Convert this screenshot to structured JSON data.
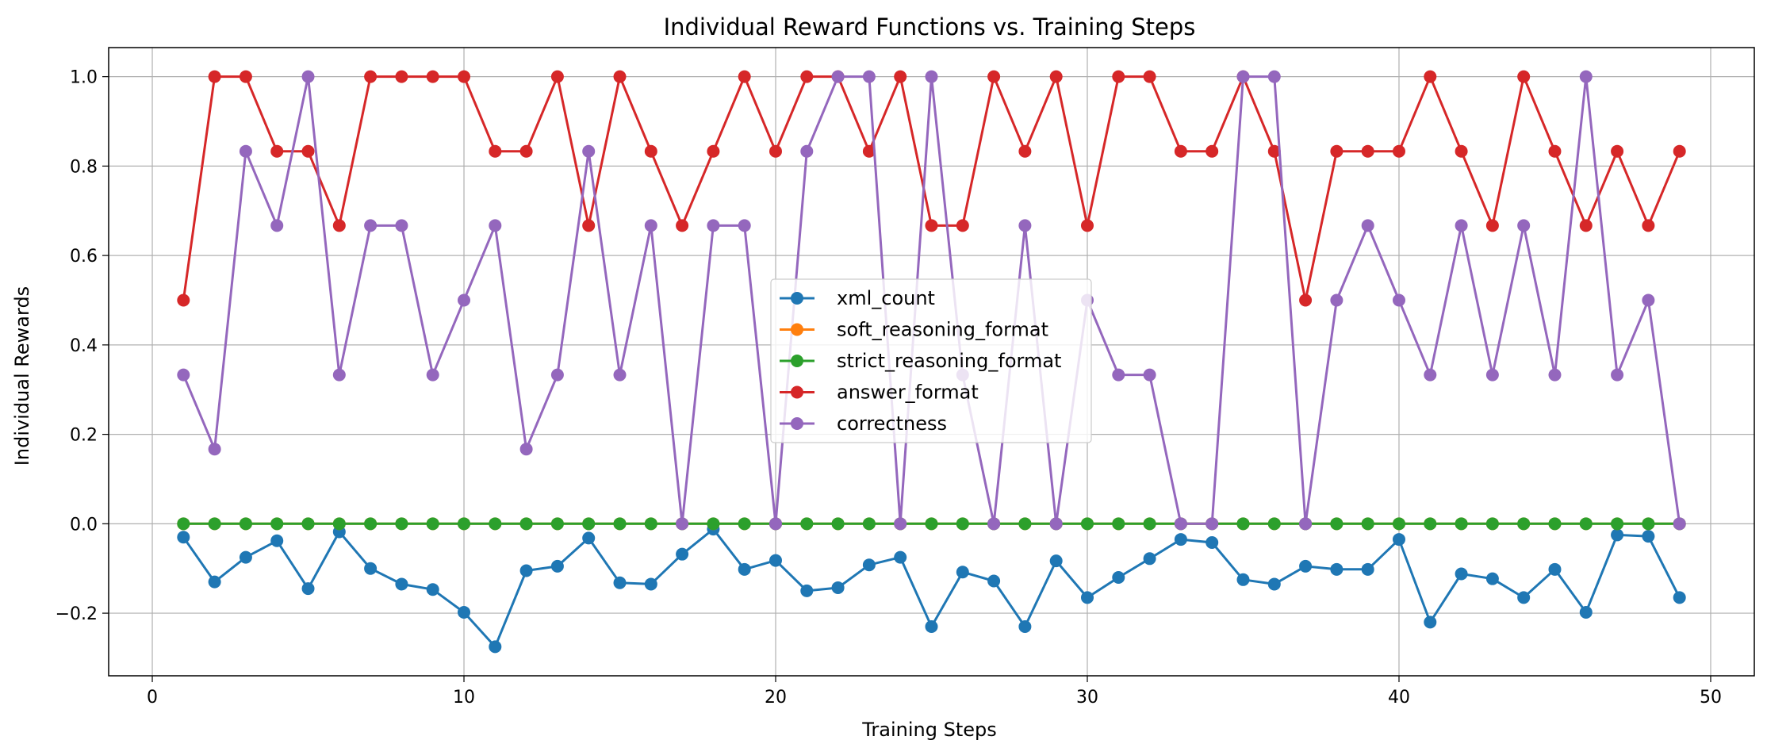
{
  "chart_data": {
    "type": "line",
    "title": "Individual Reward Functions vs. Training Steps",
    "xlabel": "Training Steps",
    "ylabel": "Individual Rewards",
    "xlim": [
      -1.4,
      51.4
    ],
    "ylim": [
      -0.34,
      1.065
    ],
    "xticks": [
      0,
      10,
      20,
      30,
      40,
      50
    ],
    "yticks": [
      -0.2,
      0.0,
      0.2,
      0.4,
      0.6,
      0.8,
      1.0
    ],
    "xtick_labels": [
      "0",
      "10",
      "20",
      "30",
      "40",
      "50"
    ],
    "ytick_labels": [
      "−0.2",
      "0.0",
      "0.2",
      "0.4",
      "0.6",
      "0.8",
      "1.0"
    ],
    "grid": true,
    "legend_position": "center",
    "x": [
      1,
      2,
      3,
      4,
      5,
      6,
      7,
      8,
      9,
      10,
      11,
      12,
      13,
      14,
      15,
      16,
      17,
      18,
      19,
      20,
      21,
      22,
      23,
      24,
      25,
      26,
      27,
      28,
      29,
      30,
      31,
      32,
      33,
      34,
      35,
      36,
      37,
      38,
      39,
      40,
      41,
      42,
      43,
      44,
      45,
      46,
      47,
      48,
      49
    ],
    "series": [
      {
        "name": "xml_count",
        "color": "#1f77b4",
        "values": [
          -0.03,
          -0.13,
          -0.075,
          -0.038,
          -0.145,
          -0.018,
          -0.1,
          -0.135,
          -0.147,
          -0.198,
          -0.275,
          -0.105,
          -0.095,
          -0.032,
          -0.132,
          -0.135,
          -0.068,
          -0.012,
          -0.102,
          -0.082,
          -0.15,
          -0.143,
          -0.092,
          -0.075,
          -0.23,
          -0.108,
          -0.128,
          -0.23,
          -0.083,
          -0.165,
          -0.12,
          -0.078,
          -0.035,
          -0.042,
          -0.125,
          -0.135,
          -0.095,
          -0.102,
          -0.102,
          -0.035,
          -0.22,
          -0.112,
          -0.123,
          -0.165,
          -0.102,
          -0.198,
          -0.025,
          -0.028,
          -0.165
        ]
      },
      {
        "name": "soft_reasoning_format",
        "color": "#ff7f0e",
        "values": [
          0,
          0,
          0,
          0,
          0,
          0,
          0,
          0,
          0,
          0,
          0,
          0,
          0,
          0,
          0,
          0,
          0,
          0,
          0,
          0,
          0,
          0,
          0,
          0,
          0,
          0,
          0,
          0,
          0,
          0,
          0,
          0,
          0,
          0,
          0,
          0,
          0,
          0,
          0,
          0,
          0,
          0,
          0,
          0,
          0,
          0,
          0,
          0,
          0
        ]
      },
      {
        "name": "strict_reasoning_format",
        "color": "#2ca02c",
        "values": [
          0,
          0,
          0,
          0,
          0,
          0,
          0,
          0,
          0,
          0,
          0,
          0,
          0,
          0,
          0,
          0,
          0,
          0,
          0,
          0,
          0,
          0,
          0,
          0,
          0,
          0,
          0,
          0,
          0,
          0,
          0,
          0,
          0,
          0,
          0,
          0,
          0,
          0,
          0,
          0,
          0,
          0,
          0,
          0,
          0,
          0,
          0,
          0,
          0
        ]
      },
      {
        "name": "answer_format",
        "color": "#d62728",
        "values": [
          0.5,
          1.0,
          1.0,
          0.833,
          0.833,
          0.667,
          1.0,
          1.0,
          1.0,
          1.0,
          0.833,
          0.833,
          1.0,
          0.667,
          1.0,
          0.833,
          0.667,
          0.833,
          1.0,
          0.833,
          1.0,
          1.0,
          0.833,
          1.0,
          0.667,
          0.667,
          1.0,
          0.833,
          1.0,
          0.667,
          1.0,
          1.0,
          0.833,
          0.833,
          1.0,
          0.833,
          0.5,
          0.833,
          0.833,
          0.833,
          1.0,
          0.833,
          0.667,
          1.0,
          0.833,
          0.667,
          0.833,
          0.667,
          0.833
        ]
      },
      {
        "name": "correctness",
        "color": "#9467bd",
        "values": [
          0.333,
          0.167,
          0.833,
          0.667,
          1.0,
          0.333,
          0.667,
          0.667,
          0.333,
          0.5,
          0.667,
          0.167,
          0.333,
          0.833,
          0.333,
          0.667,
          0.0,
          0.667,
          0.667,
          0.0,
          0.833,
          1.0,
          1.0,
          0.0,
          1.0,
          0.333,
          0.0,
          0.667,
          0.0,
          0.5,
          0.333,
          0.333,
          0.0,
          0.0,
          1.0,
          1.0,
          0.0,
          0.5,
          0.667,
          0.5,
          0.333,
          0.667,
          0.333,
          0.667,
          0.333,
          1.0,
          0.333,
          0.5,
          0.0
        ]
      }
    ]
  }
}
